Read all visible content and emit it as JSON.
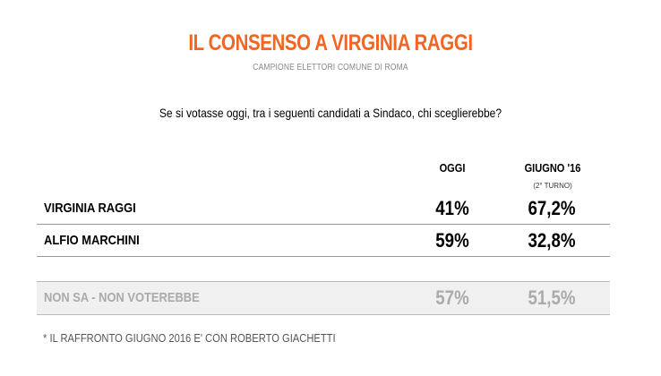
{
  "title": "IL CONSENSO A VIRGINIA RAGGI",
  "subtitle": "CAMPIONE ELETTORI COMUNE DI ROMA",
  "question": "Se si votasse oggi, tra i seguenti candidati a Sindaco, chi sceglierebbe?",
  "columns": [
    {
      "label": "OGGI",
      "note": ""
    },
    {
      "label": "GIUGNO '16",
      "note": "(2° TURNO)"
    }
  ],
  "rows": [
    {
      "label": "VIRGINIA RAGGI",
      "values": [
        "41%",
        "67,2%"
      ]
    },
    {
      "label": "ALFIO MARCHINI",
      "values": [
        "59%",
        "32,8%"
      ]
    },
    {
      "label": "NON SA - NON VOTEREBBE",
      "values": [
        "57%",
        "51,5%"
      ]
    }
  ],
  "footnote": "* IL RAFFRONTO GIUGNO 2016 E' CON ROBERTO GIACHETTI",
  "colors": {
    "title": "#f26522",
    "muted": "#aaaaaa",
    "rule": "#999999"
  },
  "chart_data": {
    "type": "table",
    "title": "IL CONSENSO A VIRGINIA RAGGI",
    "subtitle": "CAMPIONE ELETTORI COMUNE DI ROMA",
    "columns": [
      "OGGI",
      "GIUGNO '16 (2° TURNO)"
    ],
    "rows": [
      {
        "name": "VIRGINIA RAGGI",
        "values": [
          41,
          67.2
        ]
      },
      {
        "name": "ALFIO MARCHINI",
        "values": [
          59,
          32.8
        ]
      },
      {
        "name": "NON SA - NON VOTEREBBE",
        "values": [
          57,
          51.5
        ]
      }
    ],
    "unit": "%"
  }
}
